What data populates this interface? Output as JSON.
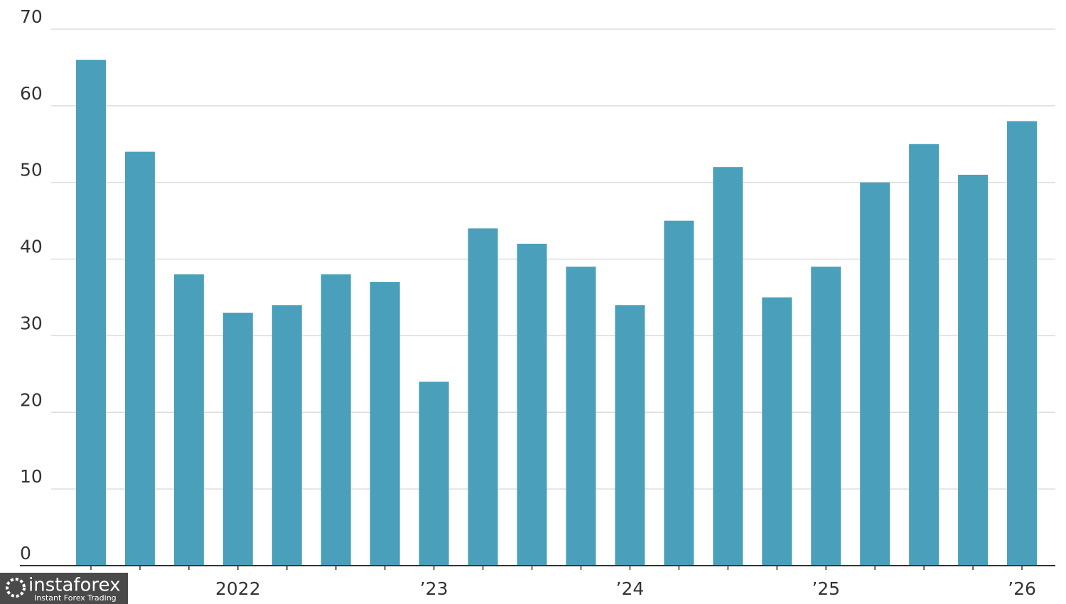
{
  "chart_data": {
    "type": "bar",
    "categories": [
      null,
      null,
      null,
      "2022",
      null,
      null,
      null,
      "’23",
      null,
      null,
      null,
      "’24",
      null,
      null,
      null,
      "’25",
      null,
      null,
      null,
      "’26"
    ],
    "values": [
      66,
      54,
      38,
      33,
      34,
      38,
      37,
      24,
      44,
      42,
      39,
      34,
      45,
      52,
      35,
      39,
      50,
      55,
      51,
      58
    ],
    "color": "#4aa0bb",
    "ylim": [
      0,
      70
    ],
    "yticks": [
      0,
      10,
      20,
      30,
      40,
      50,
      60,
      70
    ],
    "grid": true
  },
  "watermark": {
    "name": "instaforex",
    "tagline": "Instant Forex Trading"
  }
}
